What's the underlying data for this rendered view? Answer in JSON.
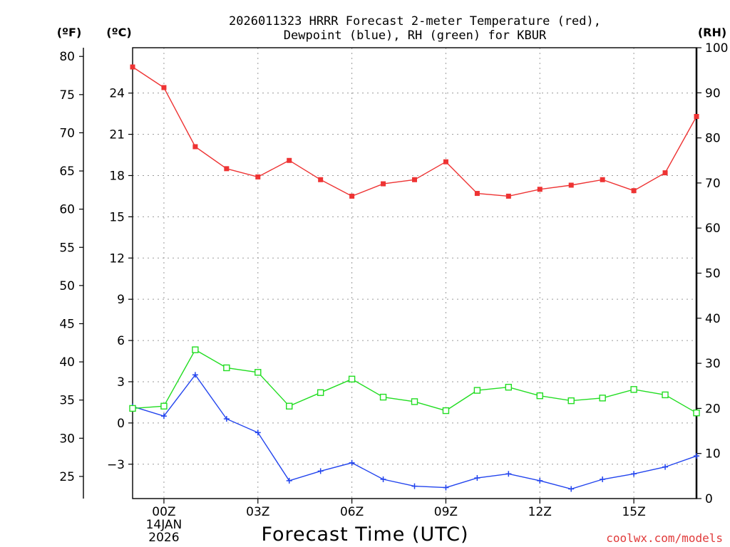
{
  "chart_data": {
    "type": "line",
    "title_line1": "2026011323 HRRR Forecast 2-meter Temperature (red),",
    "title_line2": "Dewpoint (blue), RH (green) for KBUR",
    "xlabel": "Forecast Time (UTC)",
    "credit": "coolwx.com/models",
    "units": {
      "fahrenheit": "(ºF)",
      "celsius": "(ºC)",
      "rh": "(RH)"
    },
    "x_hours": [
      -1,
      0,
      1,
      2,
      3,
      4,
      5,
      6,
      7,
      8,
      9,
      10,
      11,
      12,
      13,
      14,
      15,
      16,
      17
    ],
    "x_ticks": [
      {
        "hour": 0,
        "label": "00Z",
        "sub1": "14JAN",
        "sub2": "2026"
      },
      {
        "hour": 3,
        "label": "03Z"
      },
      {
        "hour": 6,
        "label": "06Z"
      },
      {
        "hour": 9,
        "label": "09Z"
      },
      {
        "hour": 12,
        "label": "12Z"
      },
      {
        "hour": 15,
        "label": "15Z"
      }
    ],
    "xlim": [
      -1,
      17
    ],
    "y_celsius": {
      "range": [
        -5.5,
        27.3
      ],
      "ticks": [
        "24",
        "21",
        "18",
        "15",
        "12",
        "9",
        "6",
        "3",
        "0",
        "−3"
      ]
    },
    "y_fahrenheit": {
      "ticks": [
        "80",
        "75",
        "70",
        "65",
        "60",
        "55",
        "50",
        "45",
        "40",
        "35",
        "30",
        "25"
      ]
    },
    "y_rh": {
      "range": [
        0,
        100
      ],
      "ticks": [
        "100",
        "90",
        "80",
        "70",
        "60",
        "50",
        "40",
        "30",
        "20",
        "10",
        "0"
      ]
    },
    "series": [
      {
        "name": "Temperature",
        "axis": "celsius",
        "color": "#ee3333",
        "marker": "filled-square",
        "values": [
          25.9,
          24.4,
          20.1,
          18.5,
          17.9,
          19.1,
          17.7,
          16.5,
          17.4,
          17.7,
          19.0,
          16.7,
          16.5,
          17.0,
          17.3,
          17.7,
          16.9,
          18.2,
          22.3
        ]
      },
      {
        "name": "Dewpoint",
        "axis": "celsius",
        "color": "#2244ee",
        "marker": "plus",
        "values": [
          1.2,
          0.5,
          3.5,
          0.3,
          -0.7,
          -4.2,
          -3.5,
          -2.9,
          -4.1,
          -4.6,
          -4.7,
          -4.0,
          -3.7,
          -4.2,
          -4.8,
          -4.1,
          -3.7,
          -3.2,
          -2.4
        ]
      },
      {
        "name": "RH",
        "axis": "rh",
        "color": "#22dd22",
        "marker": "open-square",
        "values": [
          20,
          20.5,
          33,
          29,
          28,
          20.5,
          23.5,
          26.5,
          22.5,
          21.5,
          19.5,
          24,
          24.7,
          22.8,
          21.7,
          22.3,
          24.2,
          23,
          19
        ]
      }
    ]
  }
}
